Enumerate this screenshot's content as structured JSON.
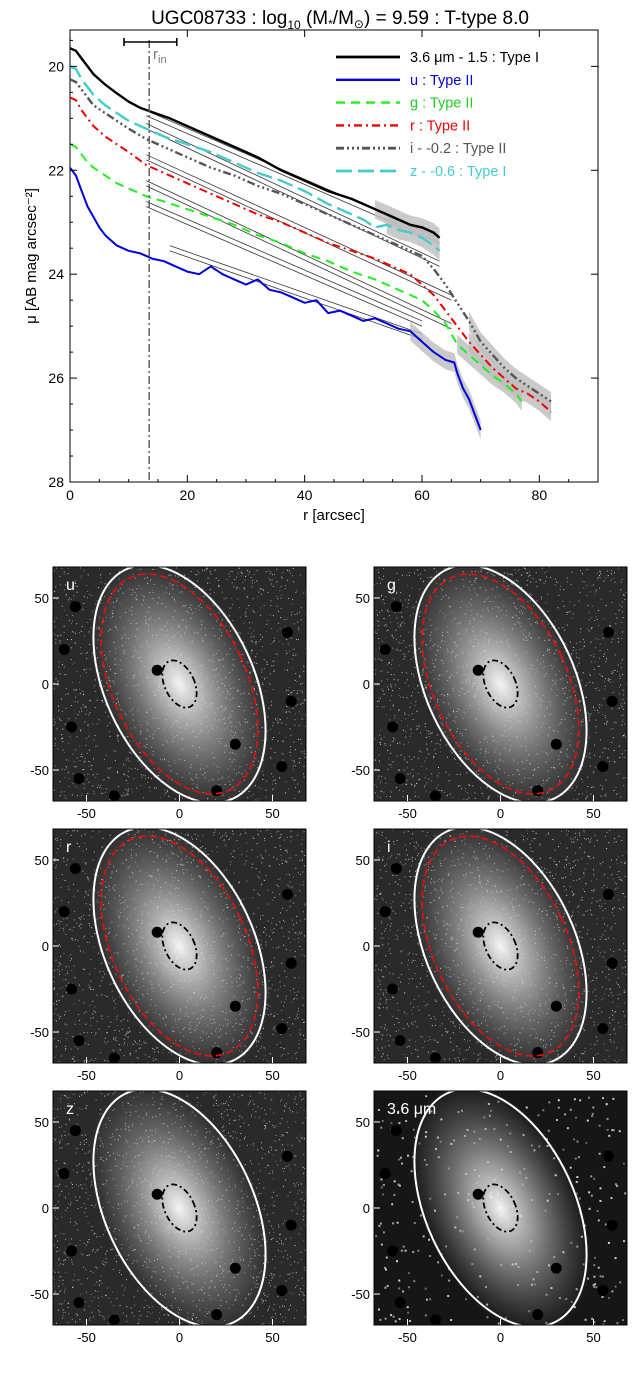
{
  "chart_data": [
    {
      "type": "line",
      "title": "UGC08733 : log10 (M*/M⊙) = 9.59 : T-type 8.0",
      "title_parts": {
        "pre": "UGC08733 : log",
        "sub": "10",
        "mid1": " (M",
        "star": "*",
        "mid2": "/M",
        "sun": "⊙",
        "post": ") = 9.59 : T-type 8.0"
      },
      "xlabel": "r [arcsec]",
      "ylabel": "μ [AB mag arcsec⁻²]",
      "xlim": [
        0,
        90
      ],
      "ylim": [
        28,
        19.3
      ],
      "y_inverted": true,
      "xticks": [
        0,
        20,
        40,
        60,
        80
      ],
      "yticks": [
        20,
        22,
        24,
        26,
        28
      ],
      "rin": 13.5,
      "rin_bar": [
        9.2,
        18.2
      ],
      "rin_label": "r",
      "rin_sub": "in",
      "legend_position": "top-right",
      "series": [
        {
          "name": "3.6 μm - 1.5 : Type I",
          "color": "#000000",
          "dash": "",
          "width": 2.4,
          "x": [
            0,
            1,
            2,
            3,
            4,
            6,
            8,
            10,
            12,
            14,
            17,
            20,
            24,
            28,
            32,
            36,
            40,
            44,
            48,
            52,
            55,
            58,
            60,
            62,
            63
          ],
          "y": [
            19.65,
            19.7,
            19.85,
            20.0,
            20.15,
            20.35,
            20.52,
            20.68,
            20.8,
            20.88,
            21.0,
            21.15,
            21.35,
            21.55,
            21.75,
            22.0,
            22.2,
            22.4,
            22.55,
            22.75,
            22.9,
            23.05,
            23.1,
            23.2,
            23.3
          ]
        },
        {
          "name": "u : Type II",
          "color": "#0000dd",
          "dash": "",
          "width": 2,
          "x": [
            0,
            1,
            2,
            3,
            4,
            5,
            6,
            8,
            10,
            12,
            14,
            16,
            18,
            20,
            22,
            24,
            26,
            28,
            30,
            32,
            34,
            36,
            38,
            40,
            42,
            44,
            46,
            48,
            50,
            52,
            54,
            56,
            58,
            60,
            62,
            64,
            65.5,
            66,
            67,
            68,
            69,
            70
          ],
          "y": [
            21.95,
            22.1,
            22.4,
            22.7,
            22.9,
            23.1,
            23.25,
            23.45,
            23.55,
            23.6,
            23.7,
            23.75,
            23.85,
            23.95,
            24.0,
            23.85,
            24.0,
            24.1,
            24.2,
            24.1,
            24.3,
            24.35,
            24.45,
            24.55,
            24.5,
            24.75,
            24.7,
            24.8,
            24.9,
            24.85,
            24.95,
            25.05,
            25.1,
            25.3,
            25.5,
            25.65,
            25.7,
            25.9,
            26.2,
            26.4,
            26.7,
            27.0
          ]
        },
        {
          "name": "g : Type II",
          "color": "#22ee22",
          "dash": "9,6",
          "width": 2,
          "x": [
            0,
            1,
            2,
            3,
            4,
            6,
            8,
            10,
            13,
            16,
            20,
            24,
            28,
            32,
            36,
            40,
            44,
            48,
            52,
            56,
            60,
            62,
            64,
            65,
            66,
            68,
            70,
            72,
            74,
            76,
            77
          ],
          "y": [
            21.5,
            21.55,
            21.7,
            21.85,
            21.95,
            22.1,
            22.25,
            22.35,
            22.5,
            22.6,
            22.75,
            22.9,
            23.05,
            23.25,
            23.4,
            23.6,
            23.75,
            23.95,
            24.1,
            24.3,
            24.5,
            24.7,
            24.95,
            25.15,
            25.35,
            25.55,
            25.75,
            25.95,
            26.1,
            26.3,
            26.45
          ]
        },
        {
          "name": "r : Type II",
          "color": "#ee0000",
          "dash": "8,4,2,4",
          "width": 2,
          "x": [
            0,
            1,
            2,
            3,
            4,
            6,
            8,
            10,
            13,
            16,
            20,
            24,
            28,
            32,
            36,
            40,
            44,
            48,
            52,
            56,
            58,
            60,
            62,
            64,
            66,
            68,
            70,
            72,
            74,
            76,
            78,
            80,
            82
          ],
          "y": [
            20.6,
            20.65,
            20.85,
            21.0,
            21.15,
            21.35,
            21.5,
            21.65,
            21.9,
            22.05,
            22.25,
            22.45,
            22.65,
            22.85,
            23.0,
            23.2,
            23.4,
            23.55,
            23.7,
            23.9,
            24.0,
            24.2,
            24.4,
            24.7,
            25.0,
            25.3,
            25.55,
            25.8,
            26.0,
            26.2,
            26.3,
            26.45,
            26.65
          ]
        },
        {
          "name": "i - -0.2 : Type II",
          "color": "#555555",
          "dash": "8,3,2,3,2,3,2,3",
          "width": 2.4,
          "x": [
            0,
            1,
            2,
            3,
            4,
            6,
            8,
            10,
            13,
            16,
            20,
            24,
            28,
            32,
            36,
            40,
            44,
            48,
            52,
            56,
            60,
            62,
            64,
            66,
            68,
            70,
            72,
            74,
            76,
            78,
            80,
            82
          ],
          "y": [
            20.25,
            20.3,
            20.45,
            20.6,
            20.75,
            20.9,
            21.05,
            21.2,
            21.4,
            21.55,
            21.75,
            21.95,
            22.1,
            22.3,
            22.45,
            22.65,
            22.85,
            23.05,
            23.25,
            23.45,
            23.65,
            23.9,
            24.2,
            24.55,
            24.9,
            25.3,
            25.55,
            25.8,
            26.0,
            26.15,
            26.3,
            26.45
          ]
        },
        {
          "name": "z - -0.6 : Type I",
          "color": "#44cccc",
          "dash": "16,6",
          "width": 2.4,
          "x": [
            0,
            1,
            2,
            3,
            4,
            6,
            8,
            10,
            13,
            16,
            20,
            24,
            28,
            32,
            36,
            40,
            44,
            48,
            50,
            52,
            54,
            56,
            58,
            60,
            62,
            63
          ],
          "y": [
            20.0,
            20.05,
            20.25,
            20.4,
            20.55,
            20.75,
            20.9,
            21.05,
            21.2,
            21.35,
            21.5,
            21.65,
            21.85,
            22.05,
            22.2,
            22.4,
            22.65,
            22.85,
            22.95,
            23.1,
            23.05,
            23.15,
            23.2,
            23.3,
            23.45,
            23.55
          ]
        }
      ],
      "fit_lines": [
        {
          "x1": 13,
          "y1": 20.85,
          "x2": 63,
          "y2": 23.3
        },
        {
          "x1": 13,
          "y1": 20.95,
          "x2": 63,
          "y2": 23.4
        },
        {
          "x1": 13,
          "y1": 21.1,
          "x2": 63,
          "y2": 23.75
        },
        {
          "x1": 13,
          "y1": 21.2,
          "x2": 63,
          "y2": 23.85
        },
        {
          "x1": 13,
          "y1": 21.7,
          "x2": 65,
          "y2": 24.4
        },
        {
          "x1": 13,
          "y1": 21.8,
          "x2": 65,
          "y2": 24.5
        },
        {
          "x1": 13,
          "y1": 22.2,
          "x2": 65,
          "y2": 24.95
        },
        {
          "x1": 13,
          "y1": 22.3,
          "x2": 65,
          "y2": 25.05
        },
        {
          "x1": 13,
          "y1": 22.6,
          "x2": 60,
          "y2": 24.9
        },
        {
          "x1": 13,
          "y1": 22.7,
          "x2": 60,
          "y2": 25.0
        },
        {
          "x1": 17,
          "y1": 23.45,
          "x2": 60,
          "y2": 25.15
        },
        {
          "x1": 17,
          "y1": 23.55,
          "x2": 60,
          "y2": 25.25
        }
      ]
    },
    {
      "type": "image",
      "panels": [
        {
          "label": "u",
          "ring": "red-white"
        },
        {
          "label": "g",
          "ring": "red-white"
        },
        {
          "label": "r",
          "ring": "red-white"
        },
        {
          "label": "i",
          "ring": "red-white"
        },
        {
          "label": "z",
          "ring": "white"
        },
        {
          "label": "3.6 μm",
          "ring": "white"
        }
      ],
      "xticks": [
        -50,
        0,
        50
      ],
      "yticks": [
        50,
        0,
        -50
      ],
      "extent": [
        -68,
        68
      ]
    }
  ]
}
